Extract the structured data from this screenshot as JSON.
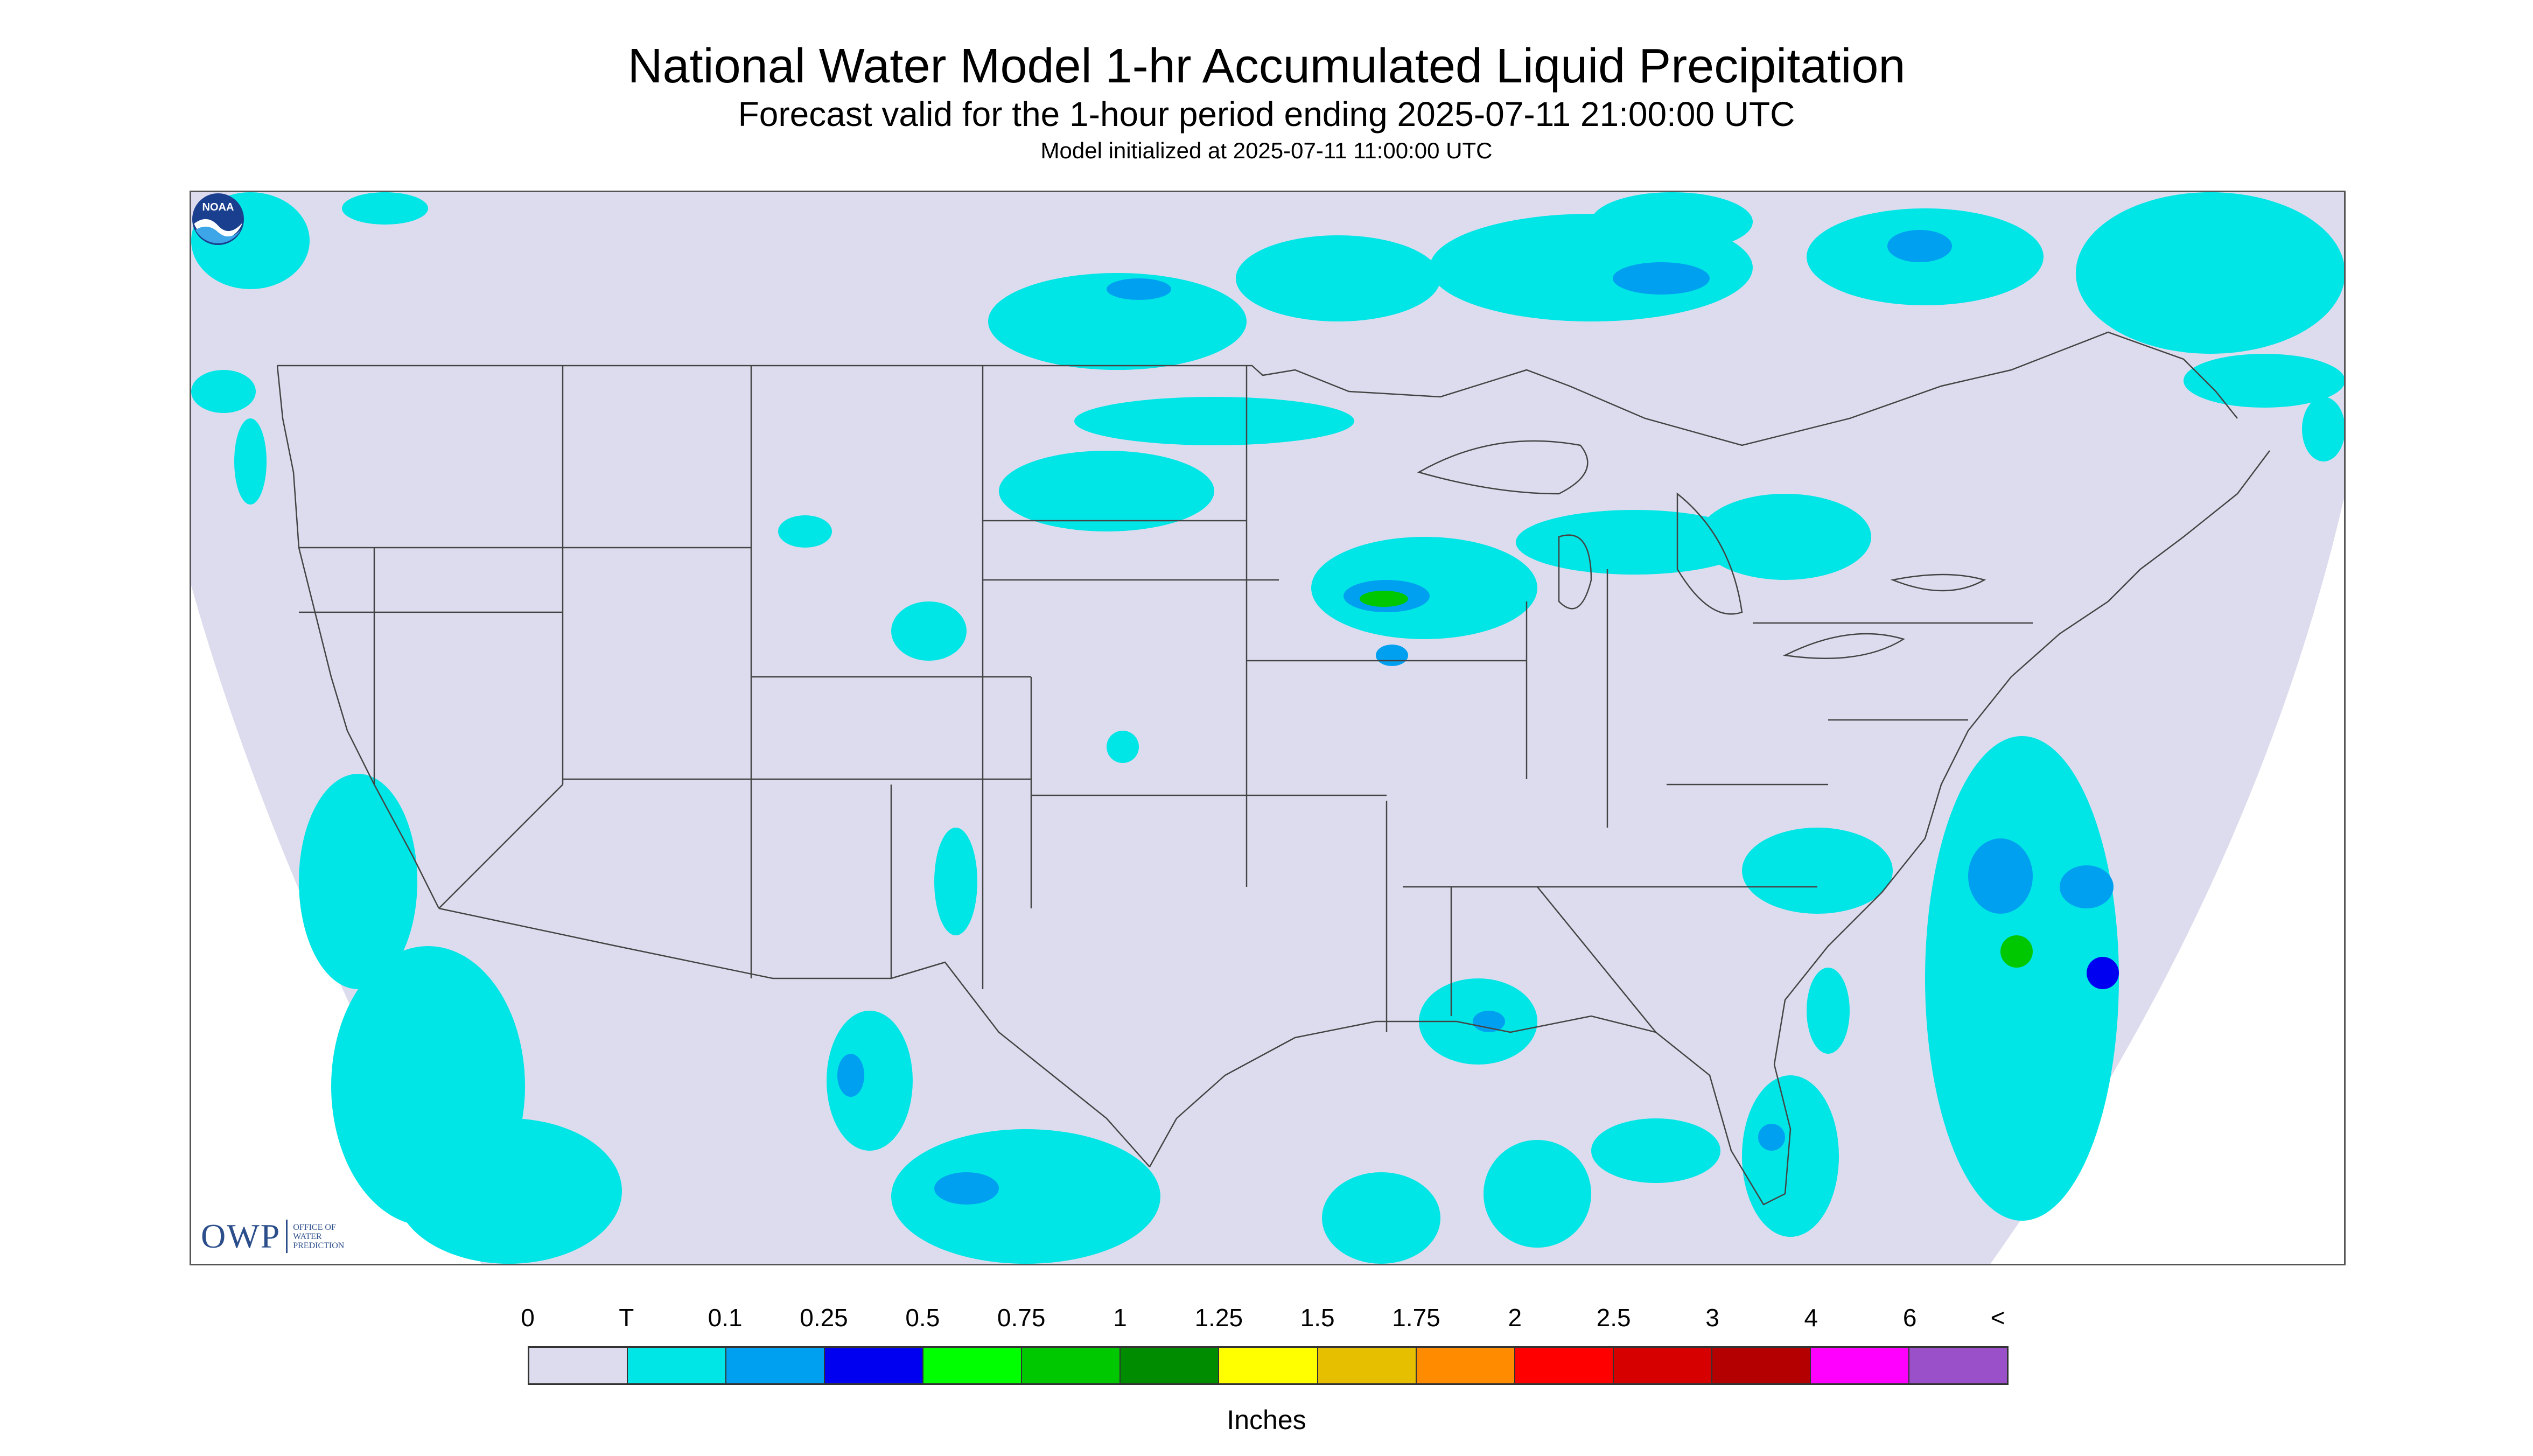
{
  "header": {
    "title": "National Water Model 1-hr Accumulated Liquid Precipitation",
    "subtitle": "Forecast valid for the 1-hour period ending 2025-07-11 21:00:00 UTC",
    "init": "Model initialized at 2025-07-11 11:00:00 UTC"
  },
  "logos": {
    "owp_text": "OWP",
    "owp_sub": [
      "OFFICE OF",
      "WATER",
      "PREDICTION"
    ],
    "noaa_text": "NOAA"
  },
  "legend": {
    "tick_labels": [
      "0",
      "T",
      "0.1",
      "0.25",
      "0.5",
      "0.75",
      "1",
      "1.25",
      "1.5",
      "1.75",
      "2",
      "2.5",
      "3",
      "4",
      "6",
      "<"
    ],
    "colors": [
      "#dcdcee",
      "#00e5e5",
      "#00a0f0",
      "#0000f0",
      "#00ff00",
      "#00c800",
      "#008c00",
      "#ffff00",
      "#e6c000",
      "#ff8c00",
      "#ff0000",
      "#d70000",
      "#b40000",
      "#ff00ff",
      "#9a50c8"
    ],
    "units": "Inches"
  },
  "map": {
    "domain_color": "#dcdcee",
    "precip_colors": {
      "trace": "#00e5e5",
      "light": "#00a0f0",
      "moderate": "#0000f0",
      "heavy": "#00c800"
    },
    "boundary_color": "#444444"
  }
}
